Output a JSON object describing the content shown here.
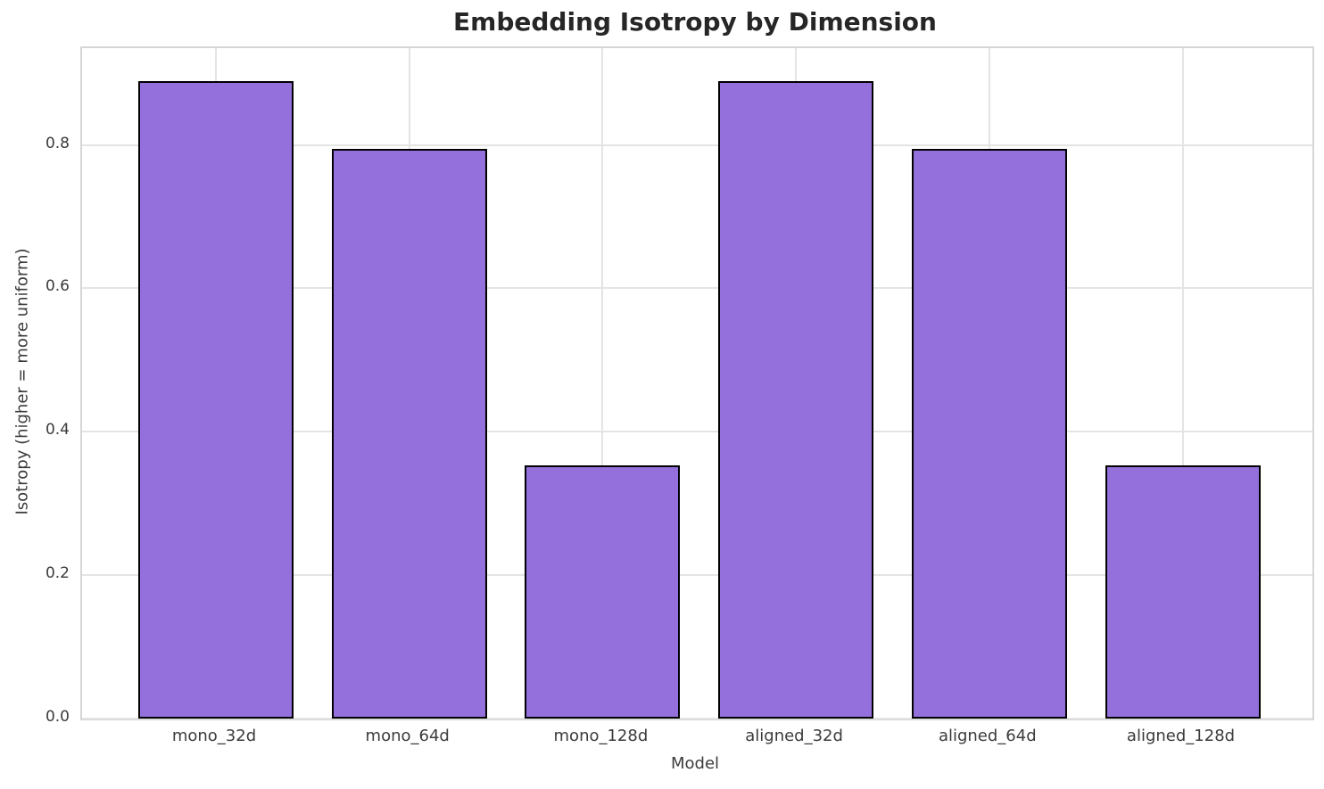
{
  "chart_data": {
    "type": "bar",
    "title": "Embedding Isotropy by Dimension",
    "xlabel": "Model",
    "ylabel": "Isotropy (higher = more uniform)",
    "categories": [
      "mono_32d",
      "mono_64d",
      "mono_128d",
      "aligned_32d",
      "aligned_64d",
      "aligned_128d"
    ],
    "values": [
      0.889,
      0.795,
      0.353,
      0.889,
      0.795,
      0.353
    ],
    "yticks": [
      0.0,
      0.2,
      0.4,
      0.6,
      0.8
    ],
    "ylim": [
      0,
      0.935
    ],
    "grid": true,
    "legend": "none",
    "colors": {
      "bar_fill": "#9370DB",
      "bar_edge": "#000000",
      "grid": "#e4e4e4",
      "spine": "#d6d6d6",
      "title_text": "#262626",
      "tick_text": "#3b3b3b"
    }
  }
}
